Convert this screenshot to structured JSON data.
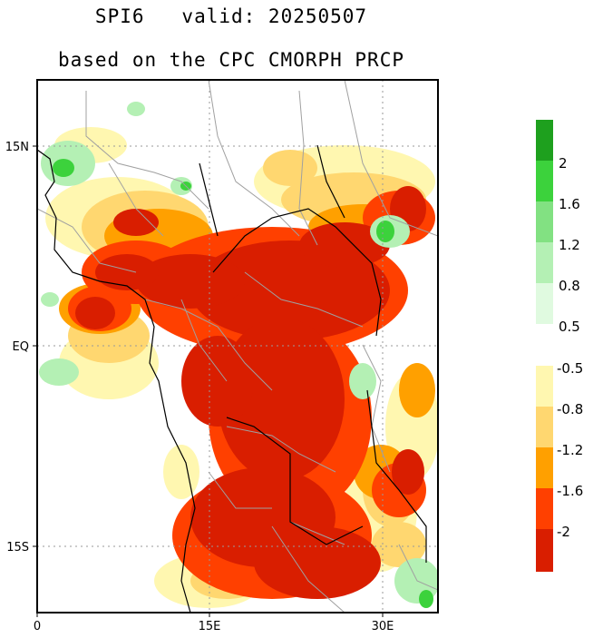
{
  "title": {
    "line1": "SPI6   valid: 20250507",
    "line2": "based on the CPC CMORPH PRCP"
  },
  "axes": {
    "y_ticks": [
      "15N",
      "EQ",
      "15S"
    ],
    "x_ticks": [
      "0",
      "15E",
      "30E"
    ]
  },
  "colorbar": {
    "wet": {
      "labels": [
        "2",
        "1.6",
        "1.2",
        "0.8",
        "0.5"
      ],
      "colors": [
        "#1ea01e",
        "#3cd23c",
        "#82e182",
        "#b4f0b4",
        "#e0fae0",
        "#ffffff"
      ]
    },
    "dry": {
      "labels": [
        "-0.5",
        "-0.8",
        "-1.2",
        "-1.6",
        "-2"
      ],
      "colors": [
        "#ffffff",
        "#fff7b0",
        "#ffd770",
        "#ffa000",
        "#ff4000",
        "#d91e00"
      ]
    }
  },
  "palette": {
    "deep_red": "#d91e00",
    "red_orange": "#ff4000",
    "orange": "#ffa000",
    "light_orange": "#ffd770",
    "pale_yellow": "#fff7b0",
    "light_green": "#b4f0b4",
    "green": "#3cd23c",
    "border_gray": "#a0a0a0"
  }
}
